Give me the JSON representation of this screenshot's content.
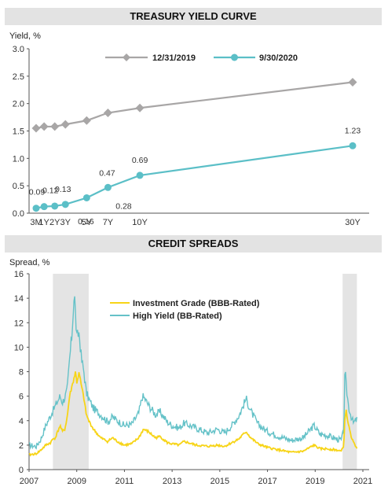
{
  "titles": {
    "yield_curve": "TREASURY YIELD CURVE",
    "credit_spreads": "CREDIT SPREADS"
  },
  "colors": {
    "series_2019": "#a8a6a6",
    "series_2020": "#5bbfc7",
    "investment_grade": "#f7d417",
    "high_yield": "#65c2c8",
    "recession_shade": "#e4e4e4"
  },
  "chart_data": [
    {
      "type": "line",
      "title": "TREASURY YIELD CURVE",
      "ylabel": "Yield, %",
      "ylim": [
        0,
        3.0
      ],
      "yticks": [
        "0.0",
        "0.5",
        "1.0",
        "1.5",
        "2.0",
        "2.5",
        "3.0"
      ],
      "x_unit": "years to maturity",
      "x": [
        0.25,
        1,
        2,
        3,
        5,
        7,
        10,
        30
      ],
      "categories": [
        "3M",
        "1Y",
        "2Y",
        "3Y",
        "5Y",
        "7Y",
        "10Y",
        "30Y"
      ],
      "grid": false,
      "legend": "top",
      "series": [
        {
          "name": "12/31/2019",
          "values": [
            1.55,
            1.58,
            1.58,
            1.62,
            1.69,
            1.83,
            1.92,
            2.39
          ],
          "marker": "diamond"
        },
        {
          "name": "9/30/2020",
          "values": [
            0.09,
            0.12,
            0.13,
            0.16,
            0.28,
            0.47,
            0.69,
            1.23
          ],
          "marker": "circle",
          "labels": [
            "0.09",
            "0.12",
            "0.13",
            "0.16",
            "0.28",
            "0.47",
            "0.69",
            "1.23"
          ]
        }
      ]
    },
    {
      "type": "line",
      "title": "CREDIT SPREADS",
      "ylabel": "Spread, %",
      "ylim": [
        0,
        16
      ],
      "yticks": [
        "0",
        "2",
        "4",
        "6",
        "8",
        "10",
        "12",
        "14",
        "16"
      ],
      "xlim": [
        2007,
        2021
      ],
      "xticks": [
        "2007",
        "2009",
        "2011",
        "2013",
        "2015",
        "2017",
        "2019",
        "2021"
      ],
      "grid": false,
      "legend": "top-left",
      "shaded_periods": [
        [
          2008.0,
          2009.5
        ],
        [
          2020.15,
          2020.75
        ]
      ],
      "series": [
        {
          "name": "Investment Grade (BBB-Rated)",
          "x": [
            2007.0,
            2007.3,
            2007.5,
            2007.7,
            2007.9,
            2008.0,
            2008.1,
            2008.3,
            2008.4,
            2008.5,
            2008.6,
            2008.7,
            2008.8,
            2008.9,
            2008.95,
            2009.0,
            2009.1,
            2009.2,
            2009.3,
            2009.4,
            2009.5,
            2009.7,
            2010.0,
            2010.3,
            2010.5,
            2010.7,
            2011.0,
            2011.3,
            2011.6,
            2011.8,
            2012.0,
            2012.3,
            2012.5,
            2012.8,
            2013.0,
            2013.3,
            2013.5,
            2014.0,
            2014.5,
            2014.9,
            2015.2,
            2015.5,
            2015.8,
            2016.0,
            2016.1,
            2016.3,
            2016.6,
            2017.0,
            2017.5,
            2018.0,
            2018.5,
            2018.95,
            2019.2,
            2019.5,
            2019.9,
            2020.1,
            2020.2,
            2020.25,
            2020.3,
            2020.4,
            2020.5,
            2020.6,
            2020.75
          ],
          "values": [
            1.2,
            1.3,
            1.6,
            2.0,
            2.2,
            2.5,
            2.6,
            3.6,
            3.1,
            3.3,
            4.3,
            6.0,
            6.8,
            7.6,
            8.0,
            7.1,
            7.9,
            6.8,
            5.8,
            4.5,
            4.0,
            3.3,
            2.6,
            2.3,
            2.6,
            2.3,
            2.0,
            2.1,
            2.6,
            3.3,
            3.1,
            2.6,
            2.7,
            2.2,
            2.1,
            2.0,
            2.3,
            2.0,
            1.9,
            2.0,
            1.9,
            2.2,
            2.5,
            2.9,
            3.1,
            2.6,
            2.1,
            1.8,
            1.6,
            1.4,
            1.5,
            2.0,
            1.7,
            1.7,
            1.6,
            1.5,
            2.0,
            4.4,
            4.8,
            3.6,
            2.8,
            2.2,
            1.8
          ]
        },
        {
          "name": "High Yield (BB-Rated)",
          "x": [
            2007.0,
            2007.3,
            2007.5,
            2007.7,
            2007.9,
            2008.0,
            2008.1,
            2008.3,
            2008.4,
            2008.5,
            2008.6,
            2008.7,
            2008.8,
            2008.85,
            2008.9,
            2008.95,
            2009.0,
            2009.1,
            2009.2,
            2009.3,
            2009.4,
            2009.5,
            2009.7,
            2010.0,
            2010.3,
            2010.5,
            2010.7,
            2011.0,
            2011.3,
            2011.6,
            2011.75,
            2011.85,
            2012.0,
            2012.3,
            2012.5,
            2012.8,
            2013.0,
            2013.3,
            2013.5,
            2014.0,
            2014.5,
            2014.9,
            2015.2,
            2015.5,
            2015.8,
            2016.0,
            2016.1,
            2016.3,
            2016.6,
            2017.0,
            2017.5,
            2018.0,
            2018.5,
            2018.95,
            2019.2,
            2019.5,
            2019.9,
            2020.1,
            2020.2,
            2020.25,
            2020.3,
            2020.4,
            2020.5,
            2020.6,
            2020.75
          ],
          "values": [
            2.0,
            1.9,
            2.5,
            3.6,
            4.4,
            4.8,
            5.2,
            6.0,
            5.5,
            5.9,
            6.5,
            9.0,
            11.0,
            13.0,
            14.5,
            12.5,
            10.8,
            11.2,
            9.0,
            8.0,
            6.3,
            5.8,
            5.0,
            4.5,
            3.9,
            4.3,
            4.0,
            3.6,
            3.7,
            4.6,
            6.0,
            5.8,
            5.3,
            4.5,
            4.7,
            3.9,
            3.6,
            3.4,
            3.8,
            3.4,
            3.0,
            3.3,
            3.0,
            3.6,
            4.4,
            5.3,
            5.8,
            4.8,
            3.7,
            3.1,
            2.7,
            2.4,
            2.6,
            3.6,
            2.9,
            2.8,
            2.5,
            2.4,
            3.3,
            8.2,
            6.8,
            5.2,
            4.4,
            3.8,
            4.1
          ]
        }
      ]
    }
  ]
}
